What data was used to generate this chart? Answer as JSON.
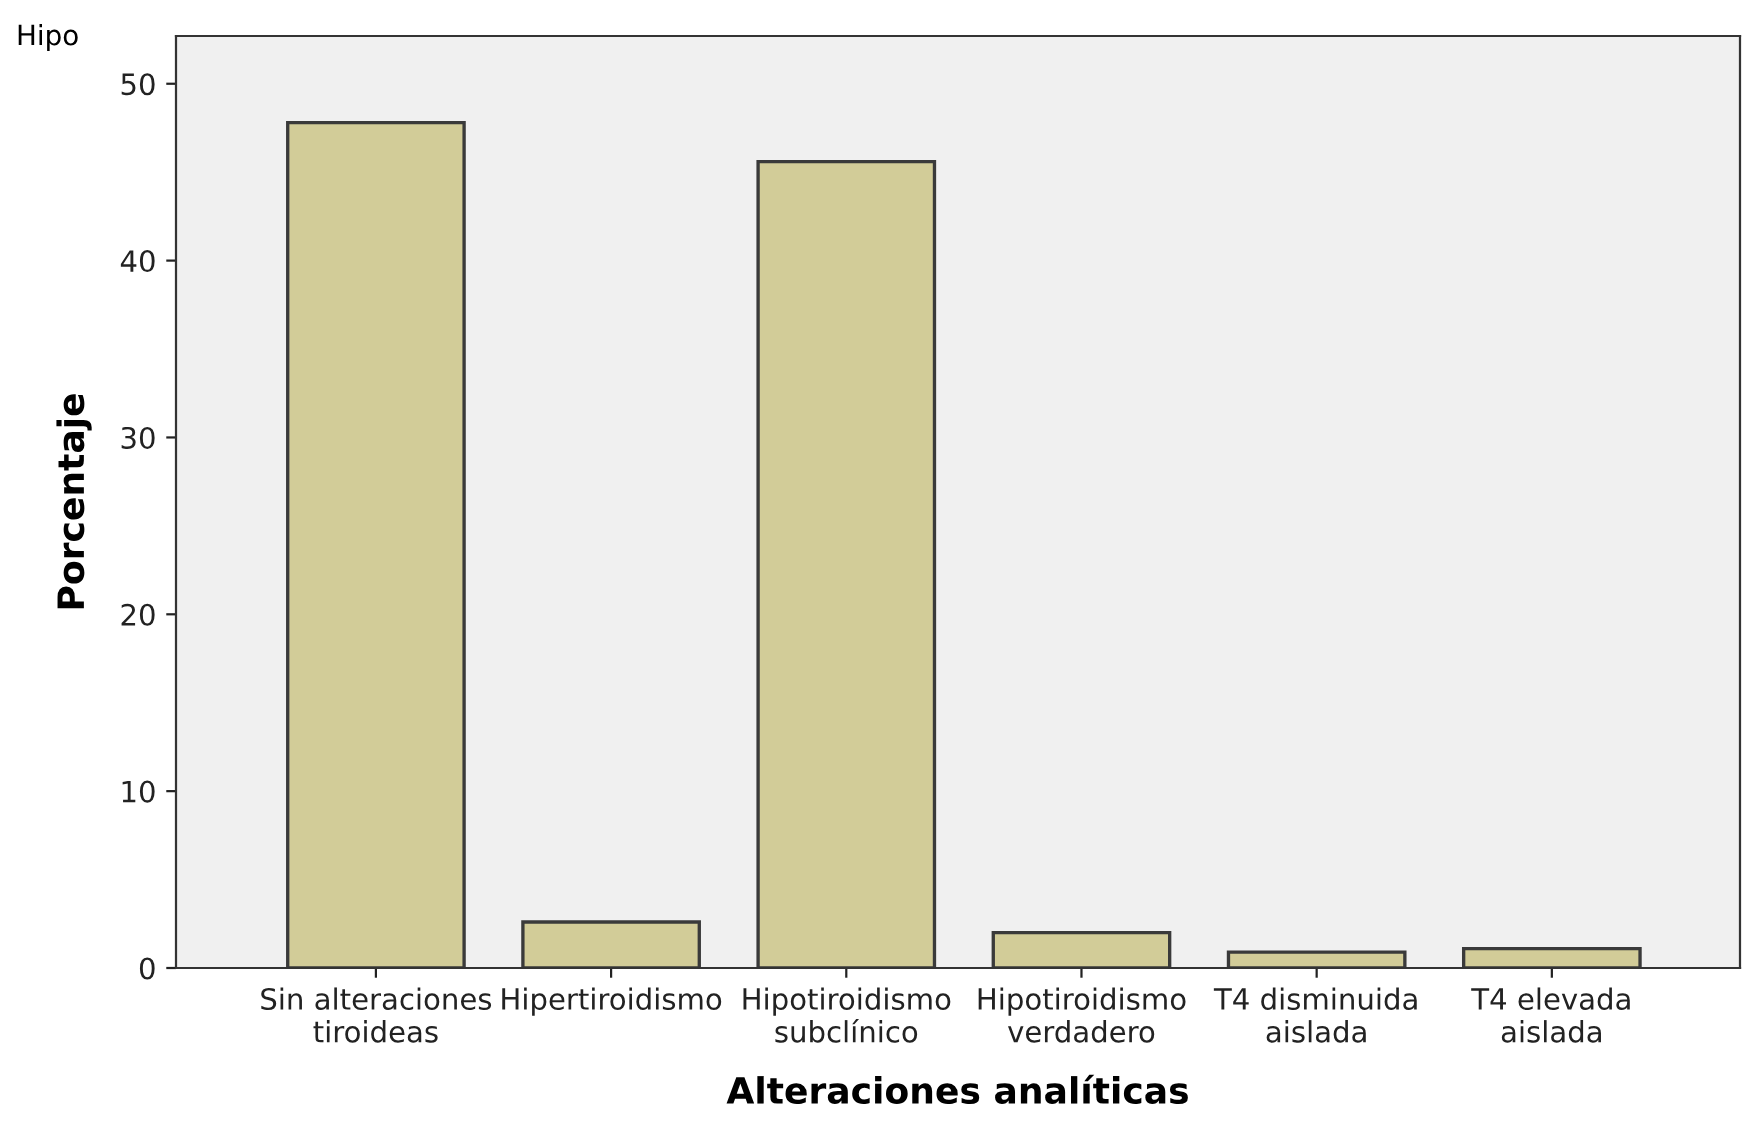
{
  "chart_data": {
    "type": "bar",
    "annotations": [
      "Hipo"
    ],
    "xlabel": "Alteraciones analíticas",
    "ylabel": "Porcentaje",
    "categories": [
      "Sin alteraciones\ntiroideas",
      "Hipertiroidismo",
      "Hipotiroidismo\nsubclínico",
      "Hipotiroidismo\nverdadero",
      "T4 disminuida\naislada",
      "T4 elevada\naislada"
    ],
    "values": [
      47.8,
      2.6,
      45.6,
      2.0,
      0.9,
      1.1
    ],
    "color": "#d2cc98",
    "ylim": [
      0,
      52.7
    ],
    "yticks": [
      0,
      10,
      20,
      30,
      40,
      50
    ],
    "grid": false,
    "legend": false
  }
}
